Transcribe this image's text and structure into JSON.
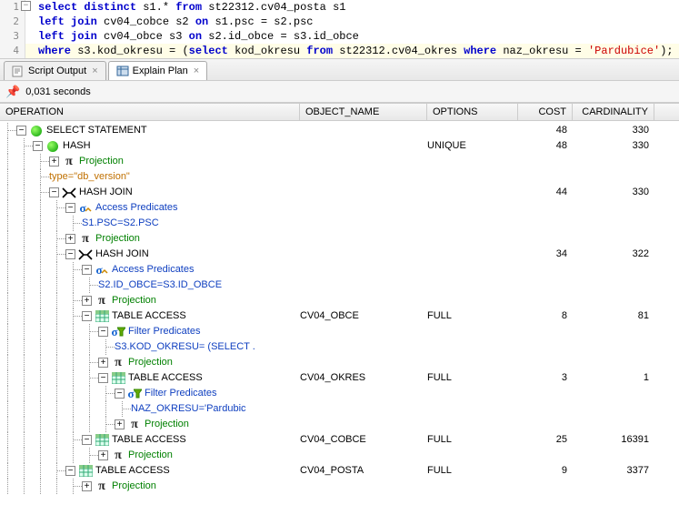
{
  "sql": {
    "lines": [
      {
        "num": "1",
        "tokens": [
          {
            "t": "select ",
            "c": "kw"
          },
          {
            "t": "distinct ",
            "c": "kw"
          },
          {
            "t": "s1.* ",
            "c": "ident"
          },
          {
            "t": "from ",
            "c": "kw"
          },
          {
            "t": "st22312.cv04_posta s1",
            "c": "ident"
          }
        ],
        "collapse": true
      },
      {
        "num": "2",
        "tokens": [
          {
            "t": "left join ",
            "c": "kw"
          },
          {
            "t": "cv04_cobce s2 ",
            "c": "ident"
          },
          {
            "t": "on ",
            "c": "kw"
          },
          {
            "t": "s1.psc = s2.psc",
            "c": "ident"
          }
        ]
      },
      {
        "num": "3",
        "tokens": [
          {
            "t": "left join ",
            "c": "kw"
          },
          {
            "t": "cv04_obce s3 ",
            "c": "ident"
          },
          {
            "t": "on ",
            "c": "kw"
          },
          {
            "t": "s2.id_obce = s3.id_obce",
            "c": "ident"
          }
        ]
      },
      {
        "num": "4",
        "tokens": [
          {
            "t": "where ",
            "c": "kw"
          },
          {
            "t": "s3.kod_okresu = (",
            "c": "ident"
          },
          {
            "t": "select ",
            "c": "kw"
          },
          {
            "t": "kod_okresu ",
            "c": "ident"
          },
          {
            "t": "from ",
            "c": "kw"
          },
          {
            "t": "st22312.cv04_okres ",
            "c": "ident"
          },
          {
            "t": "where ",
            "c": "kw"
          },
          {
            "t": "naz_okresu = ",
            "c": "ident"
          },
          {
            "t": "'Pardubice'",
            "c": "str"
          },
          {
            "t": ");",
            "c": "ident"
          }
        ],
        "hl": true
      }
    ]
  },
  "tabs": [
    {
      "label": "Script Output",
      "active": false,
      "icon": "script"
    },
    {
      "label": "Explain Plan",
      "active": true,
      "icon": "plan"
    }
  ],
  "elapsed": "0,031 seconds",
  "columns": {
    "operation": "OPERATION",
    "object": "OBJECT_NAME",
    "options": "OPTIONS",
    "cost": "COST",
    "cardinality": "CARDINALITY"
  },
  "rows": [
    {
      "d": 0,
      "tg": "-",
      "ic": "green",
      "lbl": "SELECT STATEMENT",
      "cost": "48",
      "card": "330"
    },
    {
      "d": 1,
      "tg": "-",
      "ic": "green",
      "lbl": "HASH",
      "opt": "UNIQUE",
      "cost": "48",
      "card": "330"
    },
    {
      "d": 2,
      "tg": "+",
      "ic": "pi",
      "lbl": "Projection",
      "cls": "txt-green"
    },
    {
      "d": 2,
      "tg": "",
      "ic": "",
      "lbl": "type=\"db_version\"",
      "cls": "txt-orange"
    },
    {
      "d": 2,
      "tg": "-",
      "ic": "join",
      "lbl": "HASH JOIN",
      "cost": "44",
      "card": "330"
    },
    {
      "d": 3,
      "tg": "-",
      "ic": "sigma",
      "lbl": "Access Predicates",
      "cls": "txt-blue",
      "sub": true
    },
    {
      "d": 4,
      "tg": "",
      "ic": "",
      "lbl": "S1.PSC=S2.PSC",
      "cls": "txt-blue"
    },
    {
      "d": 3,
      "tg": "+",
      "ic": "pi",
      "lbl": "Projection",
      "cls": "txt-green"
    },
    {
      "d": 3,
      "tg": "-",
      "ic": "join",
      "lbl": "HASH JOIN",
      "cost": "34",
      "card": "322"
    },
    {
      "d": 4,
      "tg": "-",
      "ic": "sigma",
      "lbl": "Access Predicates",
      "cls": "txt-blue",
      "sub": true
    },
    {
      "d": 5,
      "tg": "",
      "ic": "",
      "lbl": "S2.ID_OBCE=S3.ID_OBCE",
      "cls": "txt-blue"
    },
    {
      "d": 4,
      "tg": "+",
      "ic": "pi",
      "lbl": "Projection",
      "cls": "txt-green"
    },
    {
      "d": 4,
      "tg": "-",
      "ic": "table",
      "lbl": "TABLE ACCESS",
      "obj": "CV04_OBCE",
      "opt": "FULL",
      "cost": "8",
      "card": "81"
    },
    {
      "d": 5,
      "tg": "-",
      "ic": "filter",
      "lbl": "Filter Predicates",
      "cls": "txt-blue",
      "sub": true
    },
    {
      "d": 6,
      "tg": "",
      "ic": "",
      "lbl": "S3.KOD_OKRESU= (SELECT .",
      "cls": "txt-blue"
    },
    {
      "d": 5,
      "tg": "+",
      "ic": "pi",
      "lbl": "Projection",
      "cls": "txt-green"
    },
    {
      "d": 5,
      "tg": "-",
      "ic": "table",
      "lbl": "TABLE ACCESS",
      "obj": "CV04_OKRES",
      "opt": "FULL",
      "cost": "3",
      "card": "1"
    },
    {
      "d": 6,
      "tg": "-",
      "ic": "filter",
      "lbl": "Filter Predicates",
      "cls": "txt-blue",
      "sub": true
    },
    {
      "d": 7,
      "tg": "",
      "ic": "",
      "lbl": "NAZ_OKRESU='Pardubic",
      "cls": "txt-blue"
    },
    {
      "d": 6,
      "tg": "+",
      "ic": "pi",
      "lbl": "Projection",
      "cls": "txt-green"
    },
    {
      "d": 4,
      "tg": "-",
      "ic": "table",
      "lbl": "TABLE ACCESS",
      "obj": "CV04_COBCE",
      "opt": "FULL",
      "cost": "25",
      "card": "16391"
    },
    {
      "d": 5,
      "tg": "+",
      "ic": "pi",
      "lbl": "Projection",
      "cls": "txt-green"
    },
    {
      "d": 3,
      "tg": "-",
      "ic": "table",
      "lbl": "TABLE ACCESS",
      "obj": "CV04_POSTA",
      "opt": "FULL",
      "cost": "9",
      "card": "3377"
    },
    {
      "d": 4,
      "tg": "+",
      "ic": "pi",
      "lbl": "Projection",
      "cls": "txt-green"
    }
  ]
}
